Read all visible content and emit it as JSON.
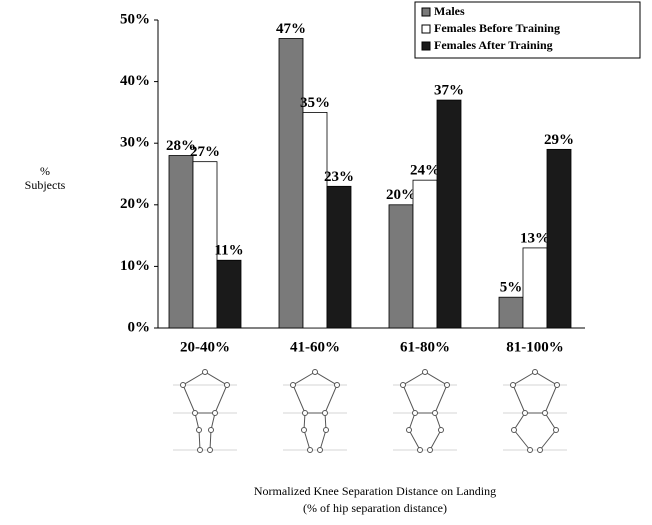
{
  "chart_data": {
    "type": "bar",
    "y_label_lines": [
      "%",
      "Subjects"
    ],
    "x_title_lines": [
      "Normalized Knee Separation Distance on Landing",
      "(% of hip separation distance)"
    ],
    "categories": [
      "20-40%",
      "41-60%",
      "61-80%",
      "81-100%"
    ],
    "series": [
      {
        "name": "Males",
        "color": "#7a7a7a",
        "values": [
          28,
          47,
          20,
          5
        ],
        "value_labels": [
          "28%",
          "47%",
          "20%",
          "5%"
        ]
      },
      {
        "name": "Females Before Training",
        "color": "#ffffff",
        "values": [
          27,
          35,
          24,
          13
        ],
        "value_labels": [
          "27%",
          "35%",
          "24%",
          "13%"
        ]
      },
      {
        "name": "Females After Training",
        "color": "#1a1a1a",
        "values": [
          11,
          23,
          37,
          29
        ],
        "value_labels": [
          "11%",
          "23%",
          "37%",
          "29%"
        ]
      }
    ],
    "ylim": [
      0,
      50
    ],
    "yticks": [
      {
        "value": 0,
        "label": "0%"
      },
      {
        "value": 10,
        "label": "10%"
      },
      {
        "value": 20,
        "label": "20%"
      },
      {
        "value": 30,
        "label": "30%"
      },
      {
        "value": 40,
        "label": "40%"
      },
      {
        "value": 50,
        "label": "50%"
      }
    ],
    "legend": "top-right"
  }
}
